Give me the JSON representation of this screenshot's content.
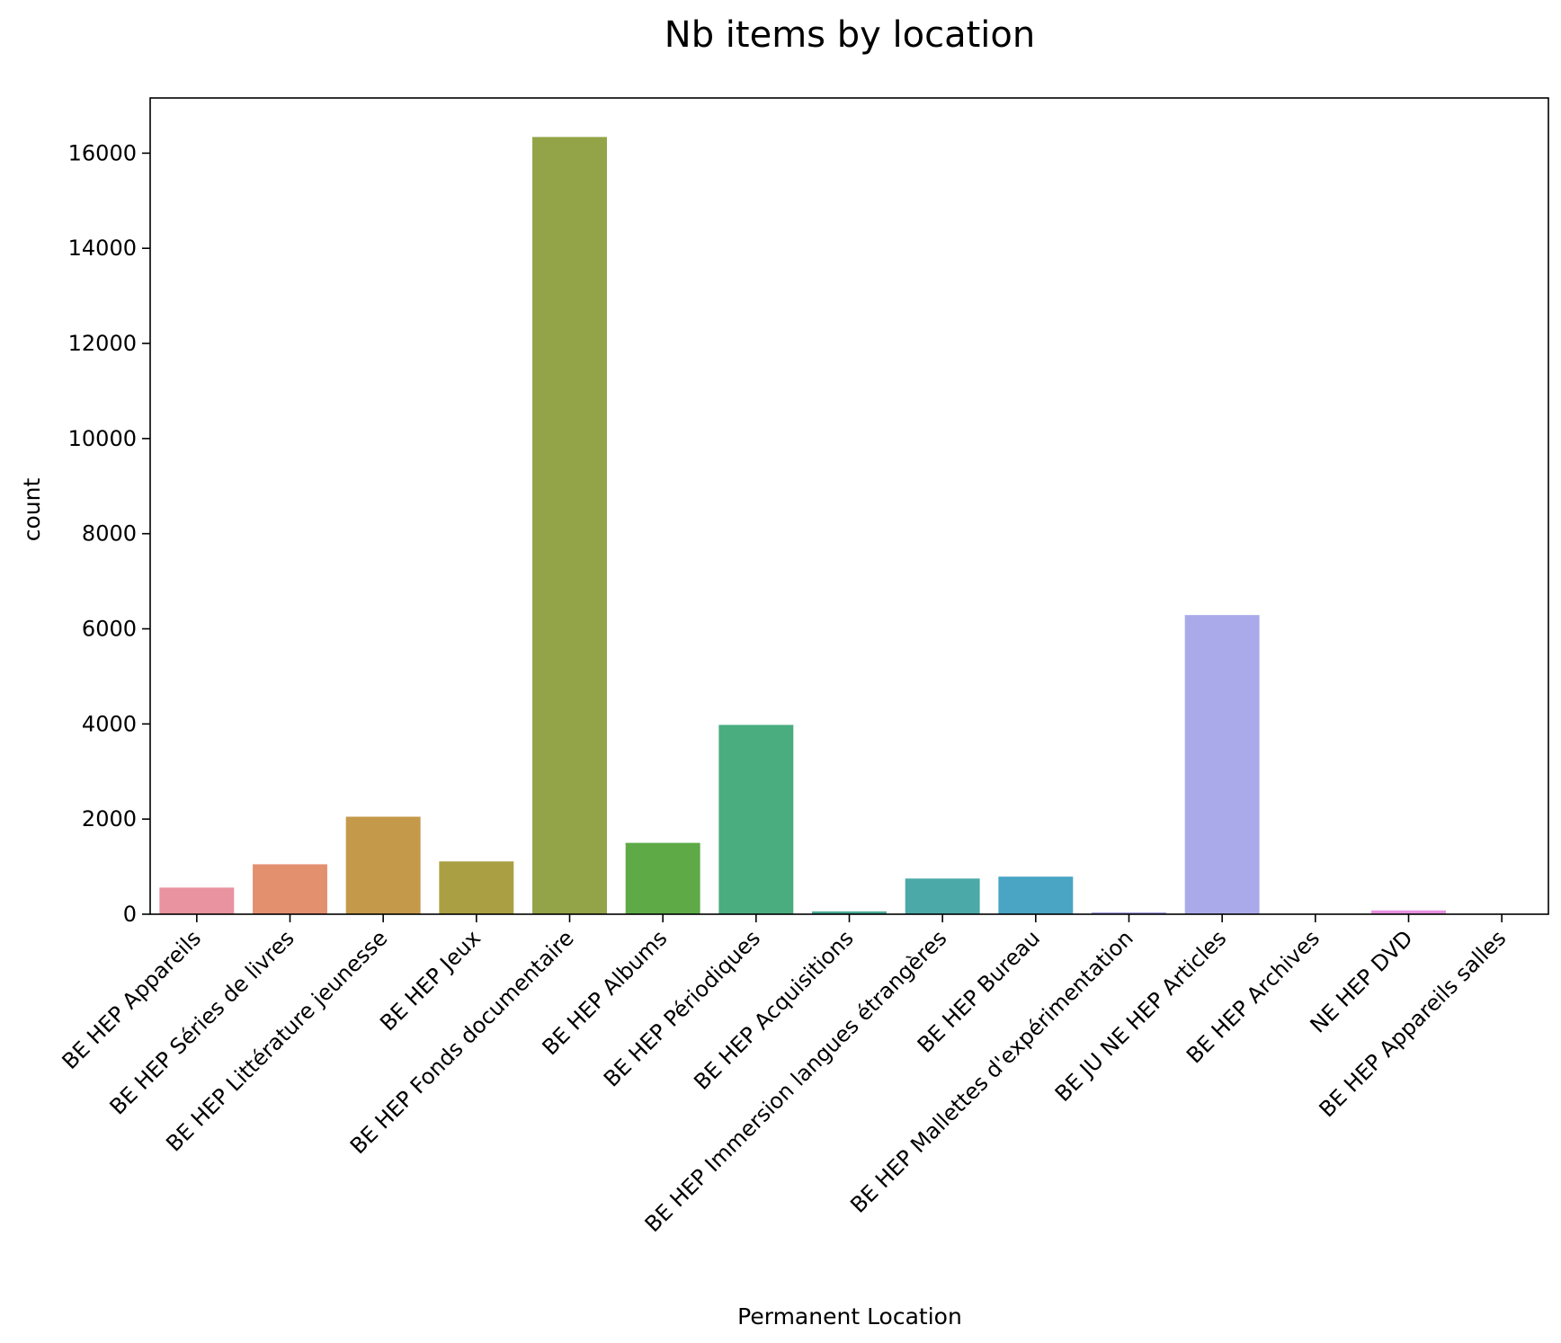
{
  "chart_data": {
    "type": "bar",
    "title": "Nb items by location",
    "xlabel": "Permanent Location",
    "ylabel": "count",
    "categories": [
      "BE HEP Appareils",
      "BE HEP Séries de livres",
      "BE HEP Littérature jeunesse",
      "BE HEP Jeux",
      "BE HEP Fonds documentaire",
      "BE HEP Albums",
      "BE HEP Périodiques",
      "BE HEP Acquisitions",
      "BE HEP Immersion langues étrangères",
      "BE HEP Bureau",
      "BE HEP Mallettes d'expérimentation",
      "BE JU NE HEP Articles",
      "BE HEP Archives",
      "NE HEP DVD",
      "BE HEP Appareils salles"
    ],
    "values": [
      560,
      1050,
      2050,
      1110,
      16340,
      1500,
      3980,
      60,
      750,
      790,
      40,
      6290,
      10,
      80,
      10
    ],
    "colors": [
      "#e8939f",
      "#e3906f",
      "#c4994a",
      "#aaa043",
      "#92a447",
      "#5eaa47",
      "#4aad7f",
      "#4aab97",
      "#4ba9a8",
      "#4aa5c4",
      "#a49fe0",
      "#aaaaea",
      "#c99de6",
      "#e591df",
      "#e993bd"
    ],
    "yticks": [
      0,
      2000,
      4000,
      6000,
      8000,
      10000,
      12000,
      14000,
      16000
    ],
    "ylim": [
      0,
      17160
    ],
    "grid": false,
    "legend": "none"
  }
}
